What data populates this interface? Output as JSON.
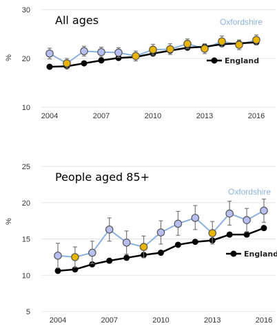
{
  "chart_data": [
    {
      "type": "line",
      "title": "All ages",
      "xlabel": "",
      "ylabel": "%",
      "x": [
        2004,
        2005,
        2006,
        2007,
        2008,
        2009,
        2010,
        2011,
        2012,
        2013,
        2014,
        2015,
        2016
      ],
      "xticks": [
        "2004",
        "2007",
        "2010",
        "2013",
        "2016"
      ],
      "yticks": [
        "10",
        "20",
        "30"
      ],
      "ylim": [
        10,
        30
      ],
      "grid": true,
      "series": [
        {
          "name": "Oxfordshire",
          "values": [
            21.0,
            19.0,
            21.5,
            21.3,
            21.2,
            20.5,
            21.8,
            21.9,
            23.0,
            22.0,
            23.5,
            22.8,
            23.8
          ],
          "ci_low": [
            19.9,
            18.0,
            20.5,
            20.3,
            20.2,
            19.5,
            20.7,
            20.8,
            22.0,
            21.0,
            22.4,
            21.8,
            22.8
          ],
          "ci_high": [
            22.1,
            20.0,
            22.5,
            22.3,
            22.2,
            21.5,
            22.9,
            23.0,
            24.0,
            23.0,
            24.6,
            23.8,
            24.8
          ],
          "significance": [
            "worse",
            "similar",
            "worse",
            "worse",
            "worse",
            "similar",
            "similar",
            "similar",
            "similar",
            "similar",
            "similar",
            "similar",
            "similar"
          ],
          "color": "#8ab0de"
        },
        {
          "name": "England",
          "values": [
            18.3,
            18.4,
            19.0,
            19.6,
            20.1,
            20.3,
            21.0,
            21.6,
            22.2,
            22.4,
            22.9,
            23.1,
            23.3
          ],
          "color": "#000000"
        }
      ]
    },
    {
      "type": "line",
      "title": "People aged 85+",
      "xlabel": "",
      "ylabel": "%",
      "x": [
        2004,
        2005,
        2006,
        2007,
        2008,
        2009,
        2010,
        2011,
        2012,
        2013,
        2014,
        2015,
        2016
      ],
      "xticks": [
        "2004",
        "2007",
        "2010",
        "2013",
        "2016"
      ],
      "yticks": [
        "5",
        "10",
        "15",
        "20",
        "25"
      ],
      "ylim": [
        5,
        25
      ],
      "grid": true,
      "series": [
        {
          "name": "Oxfordshire",
          "values": [
            12.7,
            12.5,
            13.1,
            16.3,
            14.5,
            13.9,
            15.9,
            17.1,
            17.9,
            15.8,
            18.5,
            17.6,
            18.9
          ],
          "ci_low": [
            11.0,
            11.1,
            11.6,
            14.7,
            12.9,
            12.4,
            14.3,
            15.5,
            16.3,
            14.3,
            16.9,
            16.0,
            17.3
          ],
          "ci_high": [
            14.4,
            13.9,
            14.7,
            17.9,
            16.1,
            15.4,
            17.5,
            18.8,
            19.6,
            17.4,
            20.2,
            19.2,
            20.5
          ],
          "significance": [
            "worse",
            "similar",
            "worse",
            "worse",
            "worse",
            "similar",
            "worse",
            "worse",
            "worse",
            "similar",
            "worse",
            "worse",
            "worse"
          ],
          "color": "#8ab0de"
        },
        {
          "name": "England",
          "values": [
            10.6,
            10.8,
            11.5,
            12.0,
            12.4,
            12.8,
            13.1,
            14.2,
            14.6,
            14.8,
            15.6,
            15.6,
            16.5
          ],
          "color": "#000000"
        }
      ]
    }
  ],
  "legend": {
    "region_label": "Oxfordshire",
    "england_label": "England",
    "england_label_2": "England"
  },
  "colors": {
    "similar_fill": "#e8b400",
    "worse_fill": "#b6bff0",
    "marker_stroke": "#555555",
    "region_line": "#8ab0de",
    "england_line": "#000000",
    "grid": "#e3e3e3",
    "errorbar": "#777777"
  }
}
